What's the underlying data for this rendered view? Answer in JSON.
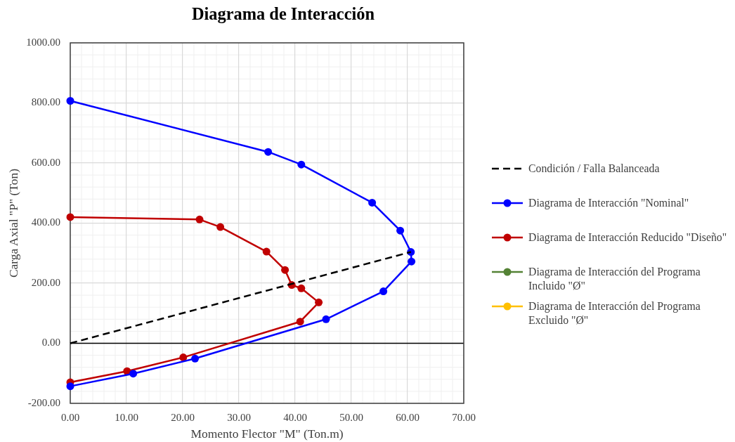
{
  "chart_data": {
    "type": "line",
    "title": "Diagrama de Interacción",
    "xlabel": "Momento Flector \"M\" (Ton.m)",
    "ylabel": "Carga Axial \"P\" (Ton)",
    "xlim": [
      0,
      70
    ],
    "xticks": [
      {
        "value": 0,
        "label": "0.00"
      },
      {
        "value": 10,
        "label": "10.00"
      },
      {
        "value": 20,
        "label": "20.00"
      },
      {
        "value": 30,
        "label": "30.00"
      },
      {
        "value": 40,
        "label": "40.00"
      },
      {
        "value": 50,
        "label": "50.00"
      },
      {
        "value": 60,
        "label": "60.00"
      },
      {
        "value": 70,
        "label": "70.00"
      }
    ],
    "ylim": [
      -200,
      1000
    ],
    "yticks": [
      {
        "value": -200,
        "label": "-200.00"
      },
      {
        "value": 0,
        "label": "0.00"
      },
      {
        "value": 200,
        "label": "200.00"
      },
      {
        "value": 400,
        "label": "400.00"
      },
      {
        "value": 600,
        "label": "600.00"
      },
      {
        "value": 800,
        "label": "800.00"
      },
      {
        "value": 1000,
        "label": "1000.00"
      }
    ],
    "grid": true,
    "legend": "right",
    "marker": "circle",
    "line_style": "solid",
    "series": [
      {
        "name": "Condición / Falla Balanceada",
        "color": "#000000",
        "x": [
          0,
          60.6
        ],
        "values": [
          0,
          304
        ],
        "marker": "none",
        "line_style": "dashed"
      },
      {
        "name": "Diagrama de Interacción \"Nominal\"",
        "color": "#0000ff",
        "x": [
          0,
          35.2,
          41.1,
          53.7,
          58.7,
          60.6,
          60.7,
          55.7,
          45.5,
          22.2,
          11.2,
          0
        ],
        "values": [
          807,
          637,
          595,
          468,
          375,
          304,
          272,
          173,
          80,
          -51,
          -101,
          -143
        ]
      },
      {
        "name": "Diagrama de Interacción Reducido \"Diseño\"",
        "color": "#c00000",
        "x": [
          0,
          23.0,
          26.7,
          34.9,
          38.2,
          39.4,
          41.1,
          44.2,
          40.9,
          20.1,
          10.1,
          0
        ],
        "values": [
          420,
          412,
          387,
          305,
          244,
          194,
          183,
          136,
          72,
          -47,
          -93,
          -130
        ]
      },
      {
        "name": "Diagrama de Interacción del Programa Incluido \"Ø\"",
        "color": "#548235"
      },
      {
        "name": "Diagrama de Interacción del Programa Excluido \"Ø\"",
        "color": "#ffc000"
      }
    ]
  }
}
